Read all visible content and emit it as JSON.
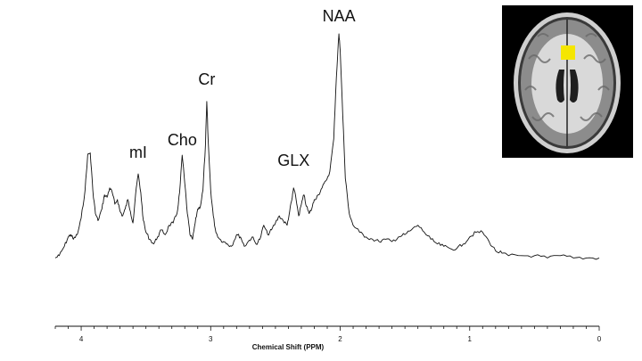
{
  "chart_data": {
    "type": "line",
    "xlabel": "Chemical Shift (PPM)",
    "ylabel": "",
    "title": "",
    "xlim": [
      4.2,
      0
    ],
    "ylim": [
      0,
      1
    ],
    "x_reversed": true,
    "x_ticks": [
      4,
      3,
      2,
      1,
      0
    ],
    "x_tick_labels": [
      "4",
      "3",
      "2",
      "1",
      "0"
    ],
    "grid": false,
    "peak_labels": [
      {
        "text": "mI",
        "x": 3.56
      },
      {
        "text": "Cho",
        "x": 3.22
      },
      {
        "text": "Cr",
        "x": 3.03
      },
      {
        "text": "GLX",
        "x": 2.36
      },
      {
        "text": "NAA",
        "x": 2.01
      }
    ],
    "series": [
      {
        "x": [
          4.2,
          4.17,
          4.13,
          4.1,
          4.08,
          4.06,
          4.03,
          4.0,
          3.97,
          3.95,
          3.93,
          3.91,
          3.89,
          3.87,
          3.84,
          3.82,
          3.8,
          3.78,
          3.76,
          3.74,
          3.72,
          3.7,
          3.68,
          3.66,
          3.64,
          3.62,
          3.6,
          3.58,
          3.56,
          3.54,
          3.52,
          3.5,
          3.47,
          3.44,
          3.41,
          3.38,
          3.35,
          3.32,
          3.29,
          3.26,
          3.24,
          3.22,
          3.2,
          3.18,
          3.16,
          3.14,
          3.12,
          3.1,
          3.08,
          3.06,
          3.04,
          3.03,
          3.02,
          3.0,
          2.98,
          2.96,
          2.93,
          2.9,
          2.87,
          2.84,
          2.8,
          2.77,
          2.74,
          2.71,
          2.68,
          2.65,
          2.62,
          2.59,
          2.56,
          2.53,
          2.5,
          2.47,
          2.44,
          2.41,
          2.39,
          2.37,
          2.36,
          2.34,
          2.32,
          2.3,
          2.28,
          2.26,
          2.24,
          2.22,
          2.2,
          2.17,
          2.14,
          2.11,
          2.08,
          2.05,
          2.03,
          2.01,
          2.0,
          1.98,
          1.96,
          1.93,
          1.9,
          1.85,
          1.8,
          1.75,
          1.7,
          1.65,
          1.6,
          1.55,
          1.5,
          1.45,
          1.4,
          1.35,
          1.3,
          1.25,
          1.2,
          1.15,
          1.1,
          1.05,
          1.0,
          0.95,
          0.9,
          0.85,
          0.8,
          0.75,
          0.7,
          0.6,
          0.5,
          0.4,
          0.3,
          0.2,
          0.1,
          0.0
        ],
        "y": [
          0.01,
          0.02,
          0.06,
          0.1,
          0.11,
          0.09,
          0.11,
          0.18,
          0.3,
          0.45,
          0.46,
          0.3,
          0.2,
          0.17,
          0.22,
          0.28,
          0.27,
          0.31,
          0.29,
          0.24,
          0.26,
          0.21,
          0.19,
          0.22,
          0.26,
          0.21,
          0.16,
          0.28,
          0.37,
          0.29,
          0.17,
          0.12,
          0.09,
          0.07,
          0.1,
          0.13,
          0.11,
          0.15,
          0.16,
          0.2,
          0.29,
          0.45,
          0.33,
          0.2,
          0.11,
          0.09,
          0.16,
          0.22,
          0.23,
          0.3,
          0.5,
          0.68,
          0.52,
          0.3,
          0.19,
          0.12,
          0.09,
          0.08,
          0.07,
          0.06,
          0.11,
          0.1,
          0.06,
          0.08,
          0.1,
          0.07,
          0.09,
          0.15,
          0.11,
          0.13,
          0.16,
          0.19,
          0.17,
          0.15,
          0.21,
          0.27,
          0.31,
          0.26,
          0.19,
          0.24,
          0.28,
          0.23,
          0.2,
          0.22,
          0.26,
          0.28,
          0.31,
          0.34,
          0.38,
          0.52,
          0.78,
          0.97,
          0.9,
          0.62,
          0.35,
          0.2,
          0.15,
          0.12,
          0.1,
          0.09,
          0.08,
          0.09,
          0.08,
          0.1,
          0.11,
          0.13,
          0.15,
          0.12,
          0.09,
          0.07,
          0.06,
          0.05,
          0.05,
          0.07,
          0.1,
          0.12,
          0.12,
          0.08,
          0.04,
          0.03,
          0.02,
          0.02,
          0.02,
          0.01,
          0.02,
          0.01,
          0.01,
          0.01
        ]
      }
    ]
  },
  "inset": {
    "image_kind": "mri-axial-brain",
    "roi_color": "#f5e600"
  }
}
